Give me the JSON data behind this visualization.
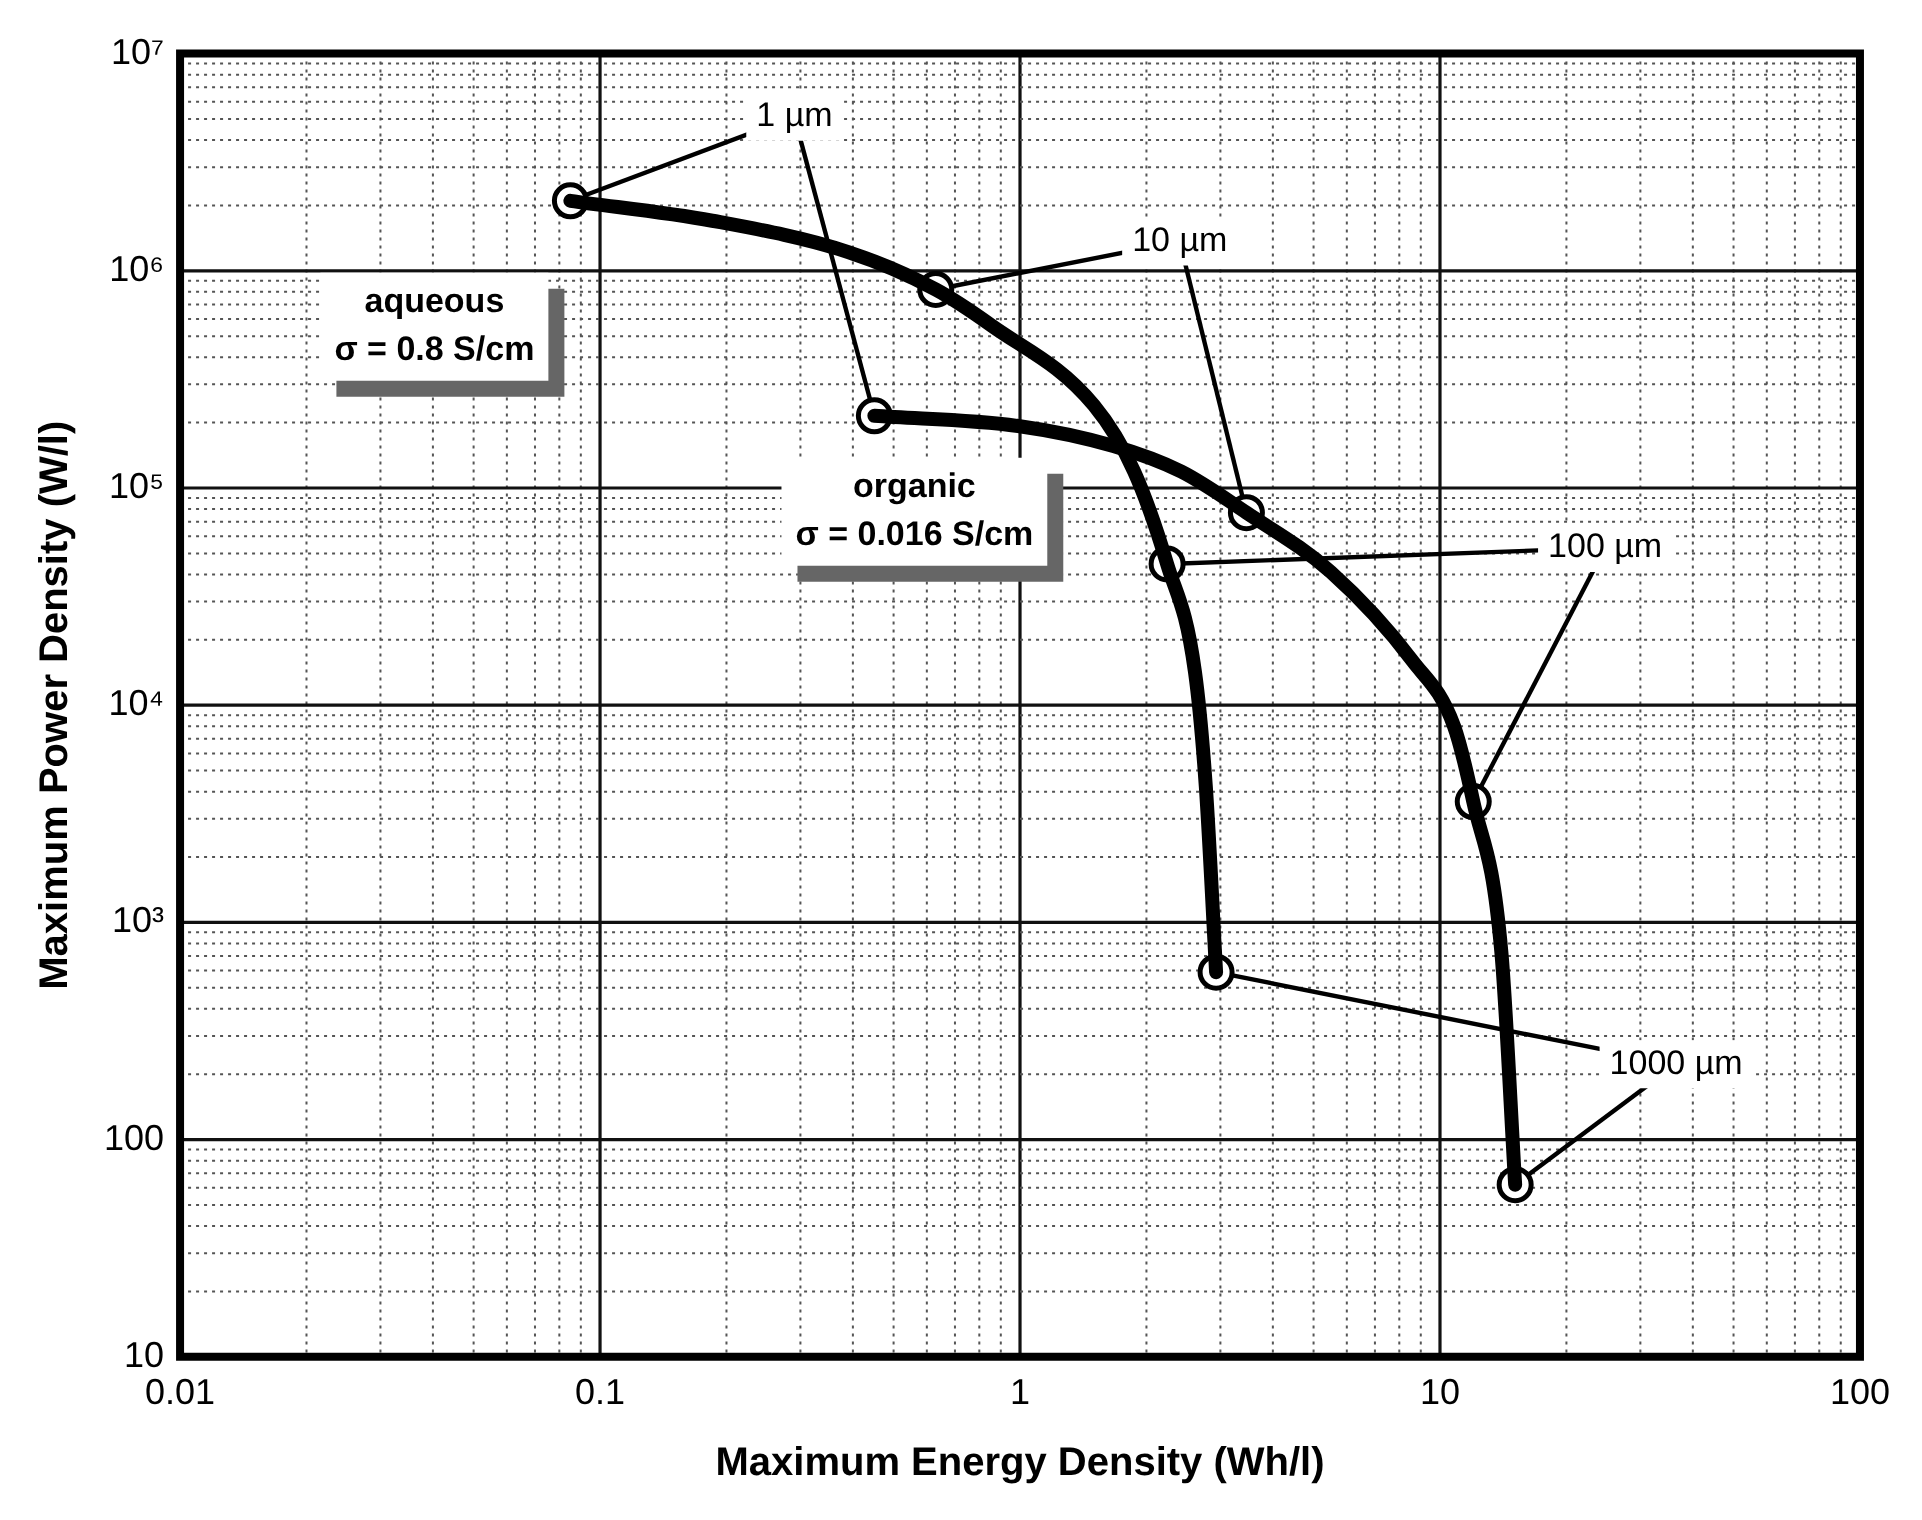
{
  "chart_data": {
    "type": "line",
    "xlabel": "Maximum Energy Density (Wh/l)",
    "ylabel": "Maximum Power Density (W/l)",
    "log": "xy",
    "grid": true,
    "marker": "none",
    "line_style": "solid",
    "xlim": [
      0.01,
      100
    ],
    "xticks": [
      0.01,
      0.1,
      1,
      10,
      100
    ],
    "ylim": [
      10,
      10000000
    ],
    "yticks": [
      10,
      100,
      {
        "value": 1000,
        "label": "10³"
      },
      {
        "value": 10000,
        "label": "10⁴"
      },
      {
        "value": 100000,
        "label": "10⁵"
      },
      {
        "value": 1000000,
        "label": "10⁶"
      },
      {
        "value": 10000000,
        "label": "10⁷"
      }
    ],
    "series": [
      {
        "name": "aqueous\nσ = 0.8 S/cm",
        "color": "#000000",
        "x": [
          0.085,
          0.185,
          0.39,
          0.63,
          0.855,
          1.5,
          1.87,
          2.24,
          2.61,
          2.77,
          2.93
        ],
        "values": [
          2100000,
          1700000,
          1220000,
          820000,
          560000,
          240000,
          119000,
          44700,
          14200,
          4200,
          590
        ]
      },
      {
        "name": "organic\nσ = 0.016 S/cm",
        "color": "#000000",
        "x": [
          0.45,
          0.99,
          1.67,
          2.42,
          3.46,
          5.5,
          8.6,
          10.8,
          12,
          14,
          15.1
        ],
        "values": [
          215000,
          193000,
          156000,
          119000,
          77000,
          41000,
          16000,
          8000,
          3600,
          730,
          62
        ]
      },
      {
        "type": "scatter",
        "marker": "circle",
        "color": "#ffffff",
        "x": [
          0.085,
          0.63,
          2.24,
          2.93
        ],
        "values": [
          2100000,
          820000,
          44700,
          590
        ]
      },
      {
        "type": "scatter",
        "marker": "circle",
        "color": "#ffffff",
        "x": [
          0.45,
          3.46,
          12,
          15.1
        ],
        "values": [
          215000,
          77000,
          3600,
          62
        ]
      }
    ],
    "annotations": [
      {
        "text": "1 µm",
        "x": 0.085,
        "y": 2100000
      },
      {
        "text": "10 µm",
        "x": 0.63,
        "y": 820000
      },
      {
        "text": "100 µm",
        "x": 2.24,
        "y": 44700
      },
      {
        "text": "1000 µm",
        "x": 2.93,
        "y": 590
      }
    ]
  }
}
